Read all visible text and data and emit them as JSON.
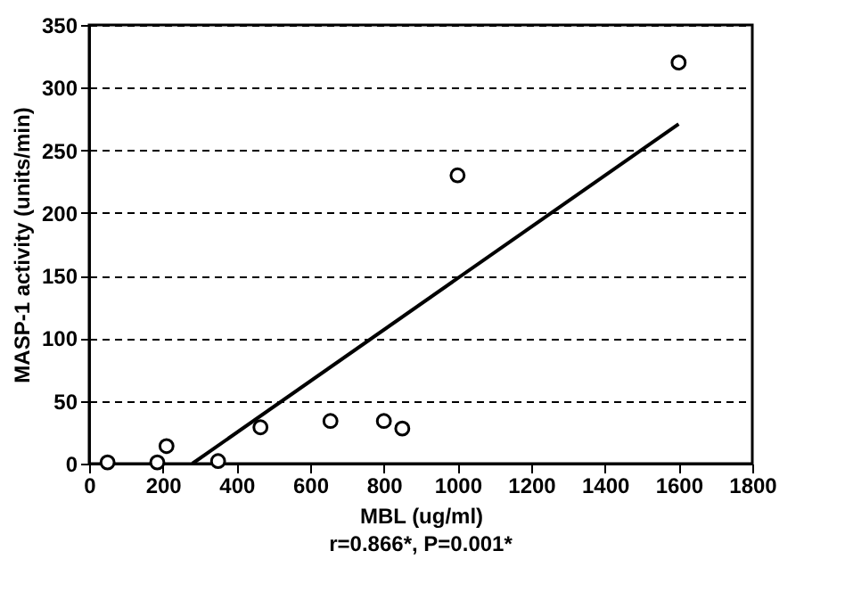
{
  "chart_data": {
    "type": "scatter",
    "xlabel": "MBL (ug/ml)",
    "ylabel": "MASP-1 activity (units/min)",
    "annotations": [
      "r=0.866*, P=0.001*"
    ],
    "x": [
      50,
      185,
      210,
      350,
      465,
      655,
      800,
      850,
      1000,
      1600
    ],
    "series": [
      {
        "color": "#ffffff",
        "values": [
          1,
          1,
          14,
          2,
          29,
          34,
          34,
          28,
          230,
          320
        ]
      },
      {
        "type": "line",
        "marker": "none",
        "color": "#000000",
        "x": [
          280,
          1600
        ],
        "values": [
          0,
          271
        ]
      }
    ],
    "marker": "circle",
    "line_style": "solid",
    "xlim": [
      0,
      1800
    ],
    "xticks": [
      0,
      200,
      400,
      600,
      800,
      1000,
      1200,
      1400,
      1600,
      1800
    ],
    "ylim": [
      0,
      350
    ],
    "yticks": [
      0,
      50,
      100,
      150,
      200,
      250,
      300,
      350
    ],
    "grid": "y"
  }
}
